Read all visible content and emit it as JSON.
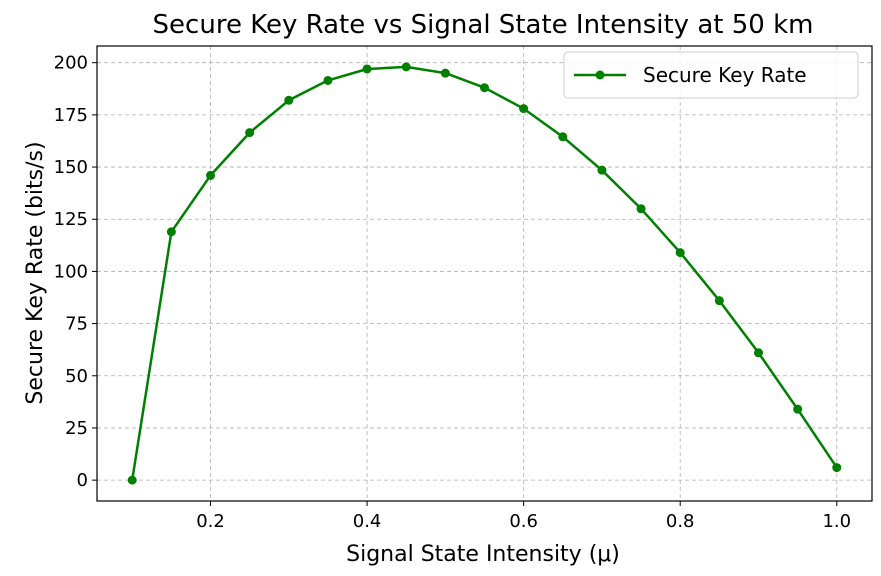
{
  "chart_data": {
    "type": "line",
    "title": "Secure Key Rate vs Signal State Intensity at 50 km",
    "xlabel": "Signal State Intensity (μ)",
    "ylabel": "Secure Key Rate (bits/s)",
    "xlim": [
      0.055,
      1.045
    ],
    "ylim": [
      -10,
      208
    ],
    "xticks": [
      0.2,
      0.4,
      0.6,
      0.8,
      1.0
    ],
    "xtick_labels": [
      "0.2",
      "0.4",
      "0.6",
      "0.8",
      "1.0"
    ],
    "yticks": [
      0,
      25,
      50,
      75,
      100,
      125,
      150,
      175,
      200
    ],
    "ytick_labels": [
      "0",
      "25",
      "50",
      "75",
      "100",
      "125",
      "150",
      "175",
      "200"
    ],
    "grid": true,
    "legend_position": "top-right",
    "series": [
      {
        "name": "Secure Key Rate",
        "color": "#008000",
        "marker": "circle",
        "x": [
          0.1,
          0.15,
          0.2,
          0.25,
          0.3,
          0.35,
          0.4,
          0.45,
          0.5,
          0.55,
          0.6,
          0.65,
          0.7,
          0.75,
          0.8,
          0.85,
          0.9,
          0.95,
          1.0
        ],
        "y": [
          0,
          119,
          146,
          166.5,
          182,
          191.5,
          197,
          198,
          195,
          188,
          178,
          164.5,
          148.5,
          130,
          109,
          86,
          61,
          34,
          6
        ]
      }
    ]
  }
}
